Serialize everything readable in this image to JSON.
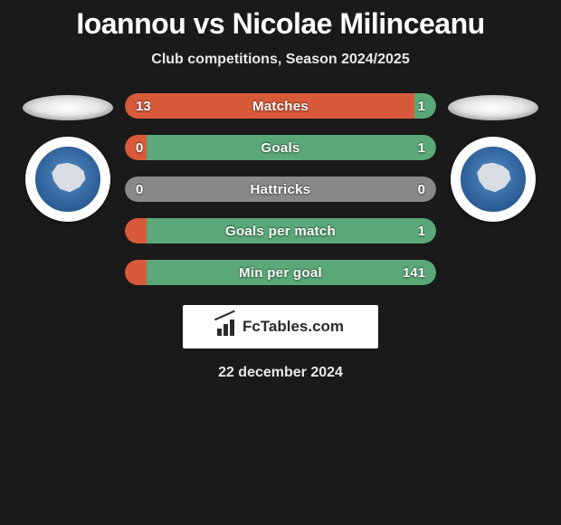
{
  "title": "Ioannou vs Nicolae Milinceanu",
  "subtitle": "Club competitions, Season 2024/2025",
  "date": "22 december 2024",
  "watermark_text": "FcTables.com",
  "colors": {
    "bg": "#1a1a1a",
    "left_bar": "#d85a3a",
    "right_bar": "#5aa878",
    "neutral_bar": "#888888",
    "text": "#ffffff"
  },
  "stats": [
    {
      "label": "Matches",
      "left_value": "13",
      "right_value": "1",
      "left_pct": 93,
      "right_pct": 7,
      "left_color": "#d85a3a",
      "right_color": "#5aa878"
    },
    {
      "label": "Goals",
      "left_value": "0",
      "right_value": "1",
      "left_pct": 7,
      "right_pct": 93,
      "left_color": "#d85a3a",
      "right_color": "#5aa878"
    },
    {
      "label": "Hattricks",
      "left_value": "0",
      "right_value": "0",
      "left_pct": 100,
      "right_pct": 0,
      "left_color": "#888888",
      "right_color": "#888888"
    },
    {
      "label": "Goals per match",
      "left_value": "",
      "right_value": "1",
      "left_pct": 7,
      "right_pct": 93,
      "left_color": "#d85a3a",
      "right_color": "#5aa878"
    },
    {
      "label": "Min per goal",
      "left_value": "",
      "right_value": "141",
      "left_pct": 7,
      "right_pct": 93,
      "left_color": "#d85a3a",
      "right_color": "#5aa878"
    }
  ]
}
